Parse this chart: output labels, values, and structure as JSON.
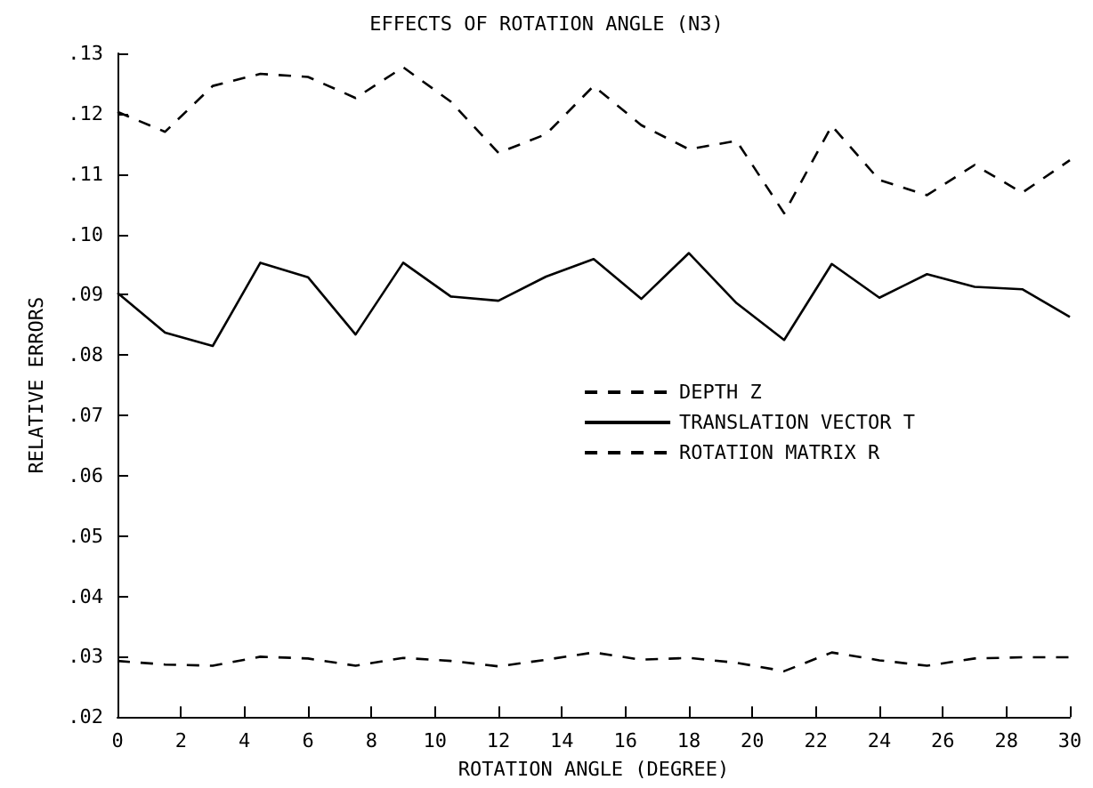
{
  "chart_data": {
    "type": "line",
    "title": "EFFECTS OF ROTATION ANGLE (N3)",
    "xlabel": "ROTATION ANGLE (DEGREE)",
    "ylabel": "RELATIVE ERRORS",
    "x": [
      0,
      1.5,
      3,
      4.5,
      6,
      7.5,
      9,
      10.5,
      12,
      13.5,
      15,
      16.5,
      18,
      19.5,
      21,
      22.5,
      24,
      25.5,
      27,
      28.5,
      30
    ],
    "series": [
      {
        "name": "DEPTH Z",
        "color": "#000000",
        "line_style": "dashed",
        "values": [
          0.1203,
          0.117,
          0.1246,
          0.1266,
          0.1261,
          0.1226,
          0.1277,
          0.122,
          0.1135,
          0.1166,
          0.1246,
          0.1181,
          0.1141,
          0.1155,
          0.1035,
          0.118,
          0.109,
          0.1065,
          0.1115,
          0.1069,
          0.1123
        ]
      },
      {
        "name": "TRANSLATION VECTOR T",
        "color": "#000000",
        "line_style": "solid",
        "values": [
          0.0903,
          0.0837,
          0.0815,
          0.0953,
          0.0929,
          0.0834,
          0.0953,
          0.0897,
          0.089,
          0.093,
          0.0959,
          0.0893,
          0.0969,
          0.0886,
          0.0825,
          0.0951,
          0.0895,
          0.0934,
          0.0913,
          0.0909,
          0.0863
        ]
      },
      {
        "name": "ROTATION MATRIX R",
        "color": "#000000",
        "line_style": "dashed",
        "values": [
          0.0293,
          0.0287,
          0.0285,
          0.03,
          0.0297,
          0.0285,
          0.0298,
          0.0293,
          0.0284,
          0.0295,
          0.0307,
          0.0295,
          0.0298,
          0.029,
          0.0276,
          0.0307,
          0.0294,
          0.0285,
          0.0297,
          0.0299,
          0.0299
        ]
      }
    ],
    "xlim": [
      0,
      30
    ],
    "xticks": [
      0,
      2,
      4,
      6,
      8,
      10,
      12,
      14,
      16,
      18,
      20,
      22,
      24,
      26,
      28,
      30
    ],
    "ylim": [
      0.02,
      0.13
    ],
    "yticks": [
      {
        "value": 0.02,
        "label": ".02"
      },
      {
        "value": 0.03,
        "label": ".03"
      },
      {
        "value": 0.04,
        "label": ".04"
      },
      {
        "value": 0.05,
        "label": ".05"
      },
      {
        "value": 0.06,
        "label": ".06"
      },
      {
        "value": 0.07,
        "label": ".07"
      },
      {
        "value": 0.08,
        "label": ".08"
      },
      {
        "value": 0.09,
        "label": ".09"
      },
      {
        "value": 0.1,
        "label": ".10"
      },
      {
        "value": 0.11,
        "label": ".11"
      },
      {
        "value": 0.12,
        "label": ".12"
      },
      {
        "value": 0.13,
        "label": ".13"
      }
    ],
    "grid": false,
    "legend": "right",
    "marker": "none"
  }
}
